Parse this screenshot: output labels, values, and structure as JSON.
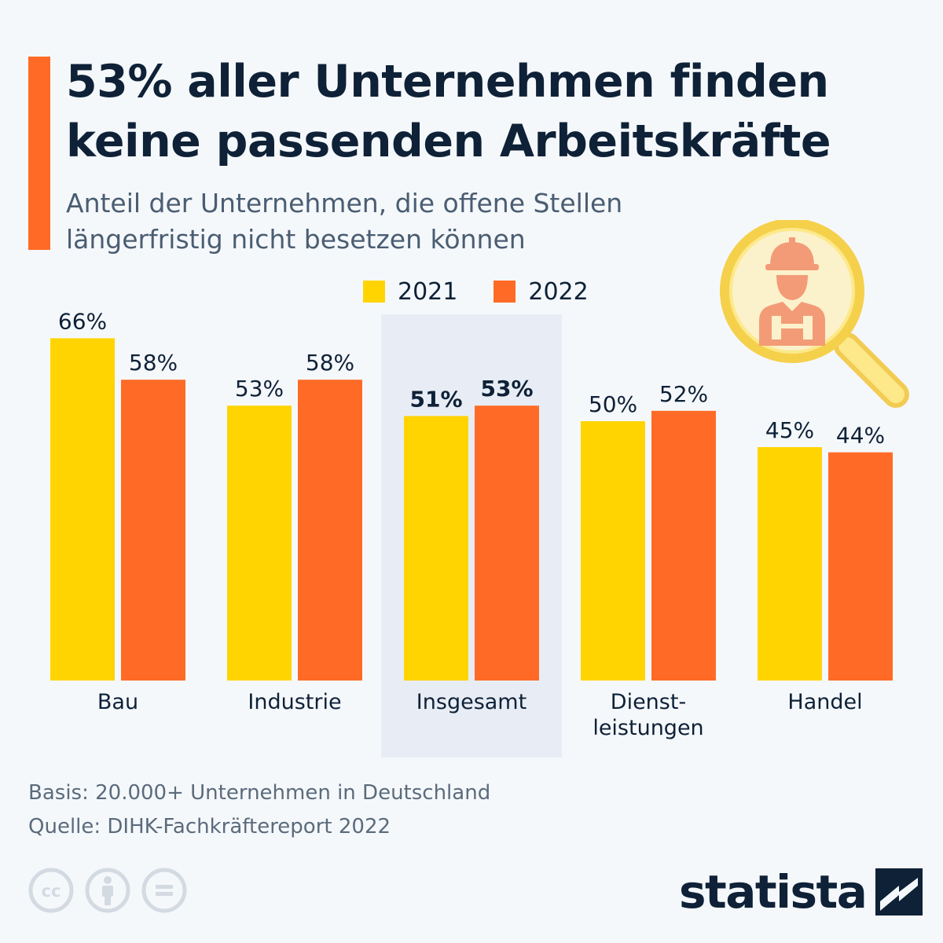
{
  "title": "53% aller Unternehmen finden keine passenden Arbeitskräfte",
  "subtitle": "Anteil der Unternehmen, die offene Stellen längerfristig nicht besetzen können",
  "legend": [
    {
      "label": "2021",
      "color": "#ffd400"
    },
    {
      "label": "2022",
      "color": "#ff6b26"
    }
  ],
  "chart_data": {
    "type": "bar",
    "categories": [
      "Bau",
      "Industrie",
      "Insgesamt",
      "Dienst-\nleistungen",
      "Handel"
    ],
    "series": [
      {
        "name": "2021",
        "color": "#ffd400",
        "values": [
          66,
          53,
          51,
          50,
          45
        ]
      },
      {
        "name": "2022",
        "color": "#ff6b26",
        "values": [
          58,
          58,
          53,
          52,
          44
        ]
      }
    ],
    "value_suffix": "%",
    "highlighted_category": "Insgesamt",
    "highlight_color": "#e8edf5"
  },
  "footer": {
    "basis": "Basis: 20.000+ Unternehmen in Deutschland",
    "source": "Quelle: DIHK-Fachkräftereport 2022"
  },
  "icons": {
    "illustration": "magnifier-worker-icon",
    "license": [
      "cc-icon",
      "by-icon",
      "nd-icon"
    ]
  },
  "brand": {
    "name": "statista",
    "color": "#0e2137",
    "accent": "#ff6b26"
  }
}
